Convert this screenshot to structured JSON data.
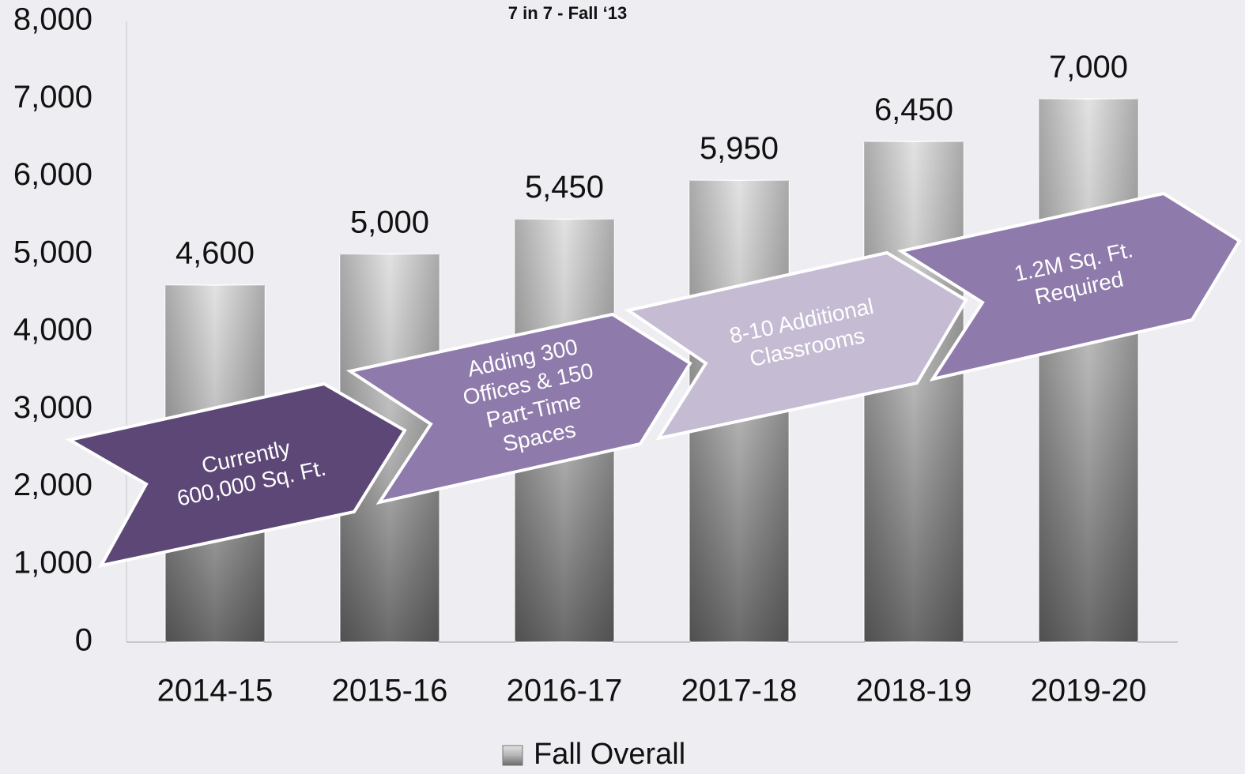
{
  "chart_data": {
    "type": "bar",
    "title": "7 in 7 - Fall ‘13",
    "categories": [
      "2014-15",
      "2015-16",
      "2016-17",
      "2017-18",
      "2018-19",
      "2019-20"
    ],
    "series": [
      {
        "name": "Fall Overall",
        "color": "#8a8a8a",
        "values": [
          4600,
          5000,
          5450,
          5950,
          6450,
          7000
        ],
        "value_labels": [
          "4,600",
          "5,000",
          "5,450",
          "5,950",
          "6,450",
          "7,000"
        ]
      }
    ],
    "ylim": [
      0,
      8000
    ],
    "yticks": [
      0,
      {
        "value": 1000,
        "label": "1,000"
      },
      {
        "value": 2000,
        "label": "2,000"
      },
      {
        "value": 3000,
        "label": "3,000"
      },
      {
        "value": 4000,
        "label": "4,000"
      },
      {
        "value": 5000,
        "label": "5,000"
      },
      {
        "value": 6000,
        "label": "6,000"
      },
      {
        "value": 7000,
        "label": "7,000"
      },
      {
        "value": 8000,
        "label": "8,000"
      }
    ],
    "grid": false,
    "legend": "bottom",
    "annotations": [
      {
        "lines": [
          "Currently",
          "600,000 Sq. Ft."
        ],
        "color": "#5c4776"
      },
      {
        "lines": [
          "Adding 300",
          "Offices & 150",
          "Part-Time",
          "Spaces"
        ],
        "color": "#8e7aab"
      },
      {
        "lines": [
          "8-10 Additional",
          "Classrooms"
        ],
        "color": "#c5bbd3"
      },
      {
        "lines": [
          "1.2M Sq. Ft.",
          "Required"
        ],
        "color": "#8e7aab"
      }
    ]
  }
}
